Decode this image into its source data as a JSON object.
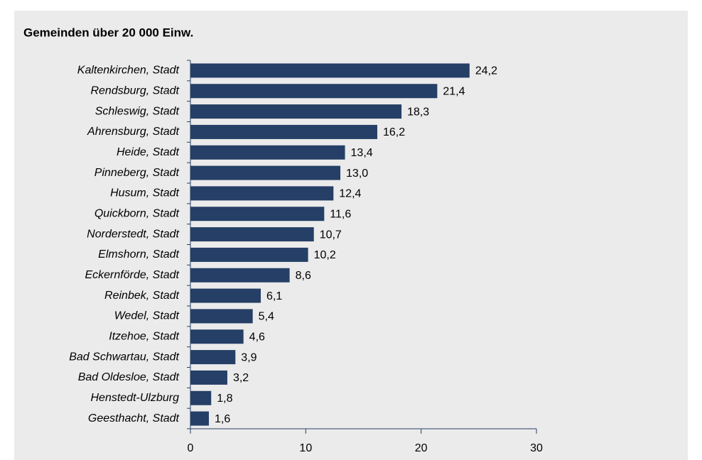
{
  "chart_data": {
    "type": "bar",
    "orientation": "horizontal",
    "title": "Gemeinden über 20 000 Einw.",
    "categories": [
      "Kaltenkirchen, Stadt",
      "Rendsburg, Stadt",
      "Schleswig, Stadt",
      "Ahrensburg, Stadt",
      "Heide, Stadt",
      "Pinneberg, Stadt",
      "Husum, Stadt",
      "Quickborn, Stadt",
      "Norderstedt, Stadt",
      "Elmshorn, Stadt",
      "Eckernförde, Stadt",
      "Reinbek, Stadt",
      "Wedel, Stadt",
      "Itzehoe, Stadt",
      "Bad Schwartau, Stadt",
      "Bad Oldesloe, Stadt",
      "Henstedt-Ulzburg",
      "Geesthacht, Stadt"
    ],
    "values": [
      24.2,
      21.4,
      18.3,
      16.2,
      13.4,
      13.0,
      12.4,
      11.6,
      10.7,
      10.2,
      8.6,
      6.1,
      5.4,
      4.6,
      3.9,
      3.2,
      1.8,
      1.6
    ],
    "value_labels": [
      "24,2",
      "21,4",
      "18,3",
      "16,2",
      "13,4",
      "13,0",
      "12,4",
      "11,6",
      "10,7",
      "10,2",
      "8,6",
      "6,1",
      "5,4",
      "4,6",
      "3,9",
      "3,2",
      "1,8",
      "1,6"
    ],
    "color": "#253f66",
    "xlim": [
      0,
      30
    ],
    "xticks": [
      0,
      10,
      20,
      30
    ],
    "grid": false
  }
}
